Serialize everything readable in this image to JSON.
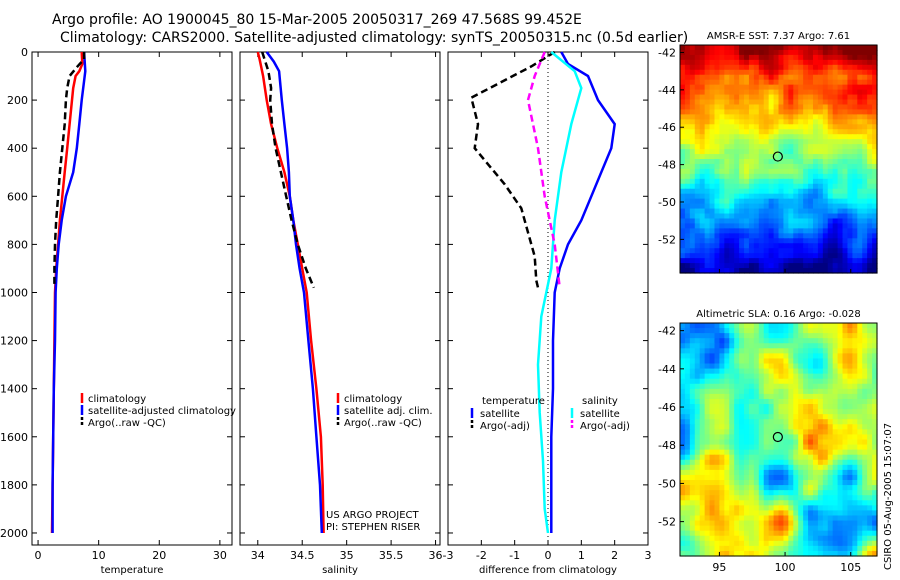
{
  "header": {
    "title_line1": "Argo profile: AO 1900045_80 15-Mar-2005 20050317_269 47.568S 99.452E",
    "title_line2": "Climatology: CARS2000. Satellite-adjusted climatology: synTS_20050315.nc (0.5d earlier)"
  },
  "credit": "CSIRO 05-Aug-2005 15:07:07",
  "chart_data": [
    {
      "id": "temperature",
      "type": "line",
      "xlabel": "temperature",
      "ylabel": "",
      "xlim": [
        -1,
        32
      ],
      "ylim": [
        2050,
        0
      ],
      "xticks": [
        0,
        10,
        20,
        30
      ],
      "yticks": [
        0,
        200,
        400,
        600,
        800,
        1000,
        1200,
        1400,
        1600,
        1800,
        2000
      ],
      "legend": [
        "climatology",
        "satellite-adjusted climatology",
        "Argo(..raw -QC)"
      ],
      "legend_position": "lower-right",
      "series": [
        {
          "name": "climatology",
          "color": "#ff0000",
          "style": "solid",
          "points": [
            [
              7.2,
              0
            ],
            [
              7.3,
              50
            ],
            [
              6.8,
              80
            ],
            [
              6.2,
              100
            ],
            [
              5.8,
              150
            ],
            [
              5.6,
              200
            ],
            [
              5.2,
              300
            ],
            [
              4.8,
              400
            ],
            [
              4.4,
              500
            ],
            [
              4.0,
              600
            ],
            [
              3.6,
              700
            ],
            [
              3.3,
              800
            ],
            [
              3.0,
              900
            ],
            [
              2.8,
              1000
            ],
            [
              2.7,
              1200
            ],
            [
              2.6,
              1400
            ],
            [
              2.5,
              1600
            ],
            [
              2.4,
              1800
            ],
            [
              2.3,
              2000
            ]
          ]
        },
        {
          "name": "satellite-adjusted climatology",
          "color": "#0000ff",
          "style": "solid",
          "points": [
            [
              7.6,
              0
            ],
            [
              7.8,
              80
            ],
            [
              7.6,
              120
            ],
            [
              7.2,
              200
            ],
            [
              6.8,
              300
            ],
            [
              6.4,
              400
            ],
            [
              5.8,
              500
            ],
            [
              4.6,
              600
            ],
            [
              3.9,
              700
            ],
            [
              3.4,
              800
            ],
            [
              3.1,
              900
            ],
            [
              2.9,
              1000
            ],
            [
              2.8,
              1200
            ],
            [
              2.6,
              1400
            ],
            [
              2.5,
              1600
            ],
            [
              2.4,
              1800
            ],
            [
              2.4,
              2000
            ]
          ]
        },
        {
          "name": "Argo(..raw -QC)",
          "color": "#000000",
          "style": "dashed",
          "points": [
            [
              7.6,
              0
            ],
            [
              7.6,
              30
            ],
            [
              6.5,
              60
            ],
            [
              5.2,
              100
            ],
            [
              4.8,
              150
            ],
            [
              4.6,
              200
            ],
            [
              4.4,
              300
            ],
            [
              4.0,
              400
            ],
            [
              3.6,
              500
            ],
            [
              3.3,
              600
            ],
            [
              3.0,
              700
            ],
            [
              2.8,
              800
            ],
            [
              2.7,
              900
            ],
            [
              2.7,
              980
            ]
          ]
        }
      ]
    },
    {
      "id": "salinity",
      "type": "line",
      "xlabel": "salinity",
      "ylabel": "",
      "xlim": [
        33.8,
        36.05
      ],
      "ylim": [
        2050,
        0
      ],
      "xticks": [
        34,
        34.5,
        35,
        35.5,
        36
      ],
      "legend": [
        "climatology",
        "satellite adj. clim.",
        "Argo(..raw -QC)"
      ],
      "legend_position": "lower-right",
      "annotation": [
        "US ARGO PROJECT",
        "PI: STEPHEN RISER"
      ],
      "series": [
        {
          "name": "climatology",
          "color": "#ff0000",
          "style": "solid",
          "points": [
            [
              34.0,
              0
            ],
            [
              34.02,
              30
            ],
            [
              34.06,
              100
            ],
            [
              34.1,
              200
            ],
            [
              34.15,
              300
            ],
            [
              34.22,
              400
            ],
            [
              34.3,
              500
            ],
            [
              34.36,
              600
            ],
            [
              34.4,
              700
            ],
            [
              34.45,
              800
            ],
            [
              34.5,
              900
            ],
            [
              34.55,
              1000
            ],
            [
              34.6,
              1200
            ],
            [
              34.66,
              1400
            ],
            [
              34.71,
              1600
            ],
            [
              34.73,
              1800
            ],
            [
              34.74,
              2000
            ]
          ]
        },
        {
          "name": "satellite adj. clim.",
          "color": "#0000ff",
          "style": "solid",
          "points": [
            [
              34.1,
              0
            ],
            [
              34.18,
              40
            ],
            [
              34.24,
              80
            ],
            [
              34.25,
              120
            ],
            [
              34.27,
              200
            ],
            [
              34.3,
              300
            ],
            [
              34.33,
              400
            ],
            [
              34.35,
              500
            ],
            [
              34.36,
              600
            ],
            [
              34.4,
              700
            ],
            [
              34.43,
              800
            ],
            [
              34.47,
              900
            ],
            [
              34.52,
              1000
            ],
            [
              34.57,
              1200
            ],
            [
              34.62,
              1400
            ],
            [
              34.66,
              1600
            ],
            [
              34.7,
              1800
            ],
            [
              34.72,
              2000
            ]
          ]
        },
        {
          "name": "Argo(..raw -QC)",
          "color": "#000000",
          "style": "dashed",
          "points": [
            [
              34.05,
              0
            ],
            [
              34.12,
              80
            ],
            [
              34.15,
              150
            ],
            [
              34.14,
              200
            ],
            [
              34.16,
              300
            ],
            [
              34.2,
              400
            ],
            [
              34.26,
              500
            ],
            [
              34.32,
              600
            ],
            [
              34.38,
              700
            ],
            [
              34.45,
              800
            ],
            [
              34.54,
              900
            ],
            [
              34.63,
              980
            ]
          ]
        }
      ]
    },
    {
      "id": "difference",
      "type": "line",
      "xlabel": "difference from climatology",
      "ylabel": "",
      "xlim": [
        -3,
        3
      ],
      "ylim": [
        2050,
        0
      ],
      "xticks": [
        -3,
        -2,
        -1,
        0,
        1,
        2,
        3
      ],
      "zero_line": true,
      "legend_left": {
        "heading": "temperature",
        "entries": [
          "satellite",
          "Argo(-adj)"
        ]
      },
      "legend_right": {
        "heading": "salinity",
        "entries": [
          "satellite",
          "Argo(-adj)"
        ]
      },
      "legend_position": "lower-center",
      "series": [
        {
          "name": "temperature satellite",
          "color": "#0000ff",
          "style": "solid",
          "points": [
            [
              0.4,
              0
            ],
            [
              0.6,
              50
            ],
            [
              1.2,
              100
            ],
            [
              1.5,
              200
            ],
            [
              2.0,
              300
            ],
            [
              1.9,
              400
            ],
            [
              1.6,
              500
            ],
            [
              1.3,
              600
            ],
            [
              1.0,
              700
            ],
            [
              0.6,
              800
            ],
            [
              0.35,
              900
            ],
            [
              0.2,
              1000
            ],
            [
              0.15,
              1200
            ],
            [
              0.15,
              1400
            ],
            [
              0.1,
              1600
            ],
            [
              0.1,
              1800
            ],
            [
              0.1,
              2000
            ]
          ]
        },
        {
          "name": "temperature Argo(-adj)",
          "color": "#000000",
          "style": "dashed",
          "points": [
            [
              0.2,
              0
            ],
            [
              -0.5,
              60
            ],
            [
              -2.3,
              190
            ],
            [
              -2.1,
              300
            ],
            [
              -2.2,
              400
            ],
            [
              -1.3,
              550
            ],
            [
              -0.8,
              650
            ],
            [
              -0.6,
              750
            ],
            [
              -0.4,
              850
            ],
            [
              -0.35,
              950
            ],
            [
              -0.3,
              980
            ]
          ]
        },
        {
          "name": "salinity satellite",
          "color": "#00ffff",
          "style": "solid",
          "points": [
            [
              0.1,
              0
            ],
            [
              0.8,
              80
            ],
            [
              1.0,
              150
            ],
            [
              0.7,
              300
            ],
            [
              0.4,
              500
            ],
            [
              0.2,
              700
            ],
            [
              0.1,
              900
            ],
            [
              -0.2,
              1100
            ],
            [
              -0.3,
              1300
            ],
            [
              -0.25,
              1500
            ],
            [
              -0.15,
              1700
            ],
            [
              -0.1,
              1900
            ],
            [
              0.0,
              2000
            ]
          ]
        },
        {
          "name": "salinity Argo(-adj)",
          "color": "#ff00ff",
          "style": "dashed",
          "points": [
            [
              -0.1,
              0
            ],
            [
              -0.4,
              100
            ],
            [
              -0.6,
              200
            ],
            [
              -0.3,
              400
            ],
            [
              -0.1,
              600
            ],
            [
              0.2,
              800
            ],
            [
              0.35,
              980
            ]
          ]
        }
      ]
    },
    {
      "id": "sst-map",
      "type": "heatmap",
      "title": "AMSR-E SST: 7.37 Argo: 7.61",
      "xlim": [
        92,
        107
      ],
      "ylim": [
        -53.8,
        -41.6
      ],
      "xticks": [
        95,
        100,
        105
      ],
      "yticks": [
        -42,
        -44,
        -46,
        -48,
        -50,
        -52
      ],
      "x_ticklabels_shown": false,
      "marker": {
        "lon": 99.45,
        "lat": -47.57
      },
      "field": "sst"
    },
    {
      "id": "sla-map",
      "type": "heatmap",
      "title": "Altimetric SLA: 0.16 Argo: -0.028",
      "xlim": [
        92,
        107
      ],
      "ylim": [
        -53.8,
        -41.6
      ],
      "xticks": [
        95,
        100,
        105
      ],
      "yticks": [
        -42,
        -44,
        -46,
        -48,
        -50,
        -52
      ],
      "marker": {
        "lon": 99.45,
        "lat": -47.57
      },
      "field": "sla"
    }
  ]
}
